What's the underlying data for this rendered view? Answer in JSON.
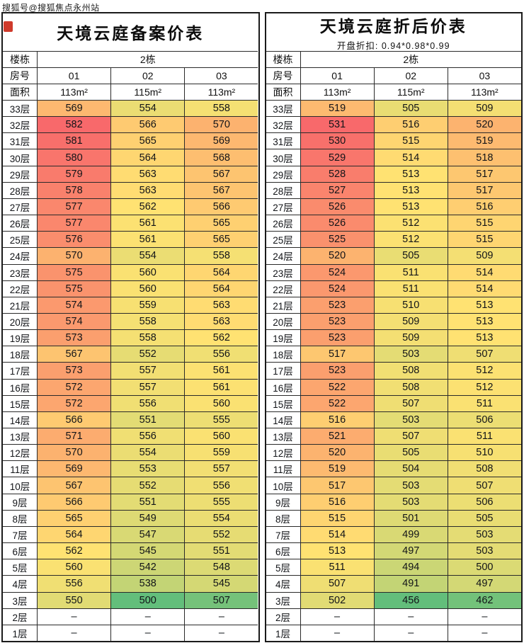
{
  "watermark": "搜狐号@搜狐焦点永州站",
  "colors": {
    "scale_min_green": "#63BE7B",
    "scale_mid_yellow": "#FFE272",
    "scale_max_red": "#F8696B",
    "empty": "#FFFFFF",
    "stamp_red": "#CF3A2B"
  },
  "chart_data": [
    {
      "type": "heatmap",
      "title": "天境云庭备案价表",
      "subtitle": null,
      "header": {
        "building_label": "楼栋",
        "building": "2栋",
        "room_label": "房号",
        "rooms": [
          "01",
          "02",
          "03"
        ],
        "area_label": "面积",
        "areas": [
          "113m²",
          "115m²",
          "113m²"
        ]
      },
      "floors": [
        "33层",
        "32层",
        "31层",
        "30层",
        "29层",
        "28层",
        "27层",
        "26层",
        "25层",
        "24层",
        "23层",
        "22层",
        "21层",
        "20层",
        "19层",
        "18层",
        "17层",
        "16层",
        "15层",
        "14层",
        "13层",
        "12层",
        "11层",
        "10层",
        "9层",
        "8层",
        "7层",
        "6层",
        "5层",
        "4层",
        "3层",
        "2层",
        "1层"
      ],
      "rows": [
        [
          569,
          554,
          558
        ],
        [
          582,
          566,
          570
        ],
        [
          581,
          565,
          569
        ],
        [
          580,
          564,
          568
        ],
        [
          579,
          563,
          567
        ],
        [
          578,
          563,
          567
        ],
        [
          577,
          562,
          566
        ],
        [
          577,
          561,
          565
        ],
        [
          576,
          561,
          565
        ],
        [
          570,
          554,
          558
        ],
        [
          575,
          560,
          564
        ],
        [
          575,
          560,
          564
        ],
        [
          574,
          559,
          563
        ],
        [
          574,
          558,
          563
        ],
        [
          573,
          558,
          562
        ],
        [
          567,
          552,
          556
        ],
        [
          573,
          557,
          561
        ],
        [
          572,
          557,
          561
        ],
        [
          572,
          556,
          560
        ],
        [
          566,
          551,
          555
        ],
        [
          571,
          556,
          560
        ],
        [
          570,
          554,
          559
        ],
        [
          569,
          553,
          557
        ],
        [
          567,
          552,
          556
        ],
        [
          566,
          551,
          555
        ],
        [
          565,
          549,
          554
        ],
        [
          564,
          547,
          552
        ],
        [
          562,
          545,
          551
        ],
        [
          560,
          542,
          548
        ],
        [
          556,
          538,
          545
        ],
        [
          550,
          500,
          507
        ],
        [
          "–",
          "–",
          "–"
        ],
        [
          "–",
          "–",
          "–"
        ]
      ]
    },
    {
      "type": "heatmap",
      "title": "天境云庭折后价表",
      "subtitle": "开盘折扣: 0.94*0.98*0.99",
      "header": {
        "building_label": "楼栋",
        "building": "2栋",
        "room_label": "房号",
        "rooms": [
          "01",
          "02",
          "03"
        ],
        "area_label": "面积",
        "areas": [
          "113m²",
          "115m²",
          "113m²"
        ]
      },
      "floors": [
        "33层",
        "32层",
        "31层",
        "30层",
        "29层",
        "28层",
        "27层",
        "26层",
        "25层",
        "24层",
        "23层",
        "22层",
        "21层",
        "20层",
        "19层",
        "18层",
        "17层",
        "16层",
        "15层",
        "14层",
        "13层",
        "12层",
        "11层",
        "10层",
        "9层",
        "8层",
        "7层",
        "6层",
        "5层",
        "4层",
        "3层",
        "2层",
        "1层"
      ],
      "rows": [
        [
          519,
          505,
          509
        ],
        [
          531,
          516,
          520
        ],
        [
          530,
          515,
          519
        ],
        [
          529,
          514,
          518
        ],
        [
          528,
          513,
          517
        ],
        [
          527,
          513,
          517
        ],
        [
          526,
          513,
          516
        ],
        [
          526,
          512,
          515
        ],
        [
          525,
          512,
          515
        ],
        [
          520,
          505,
          509
        ],
        [
          524,
          511,
          514
        ],
        [
          524,
          511,
          514
        ],
        [
          523,
          510,
          513
        ],
        [
          523,
          509,
          513
        ],
        [
          523,
          509,
          513
        ],
        [
          517,
          503,
          507
        ],
        [
          523,
          508,
          512
        ],
        [
          522,
          508,
          512
        ],
        [
          522,
          507,
          511
        ],
        [
          516,
          503,
          506
        ],
        [
          521,
          507,
          511
        ],
        [
          520,
          505,
          510
        ],
        [
          519,
          504,
          508
        ],
        [
          517,
          503,
          507
        ],
        [
          516,
          503,
          506
        ],
        [
          515,
          501,
          505
        ],
        [
          514,
          499,
          503
        ],
        [
          513,
          497,
          503
        ],
        [
          511,
          494,
          500
        ],
        [
          507,
          491,
          497
        ],
        [
          502,
          456,
          462
        ],
        [
          "–",
          "–",
          "–"
        ],
        [
          "–",
          "–",
          "–"
        ]
      ]
    }
  ]
}
